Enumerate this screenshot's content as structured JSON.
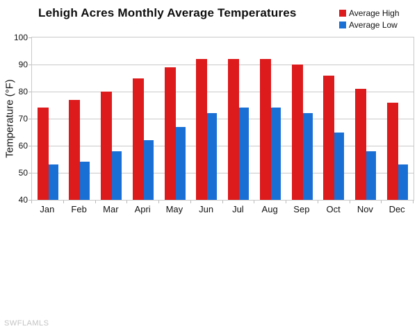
{
  "watermark": "SWFLAMLS",
  "chart_data": {
    "type": "bar",
    "title": "Lehigh Acres Monthly Average Temperatures",
    "xlabel": "",
    "ylabel": "Temperature (°F)",
    "ylim": [
      40,
      100
    ],
    "yticks": [
      40,
      50,
      60,
      70,
      80,
      90,
      100
    ],
    "grid": true,
    "legend_position": "top-right",
    "categories": [
      "Jan",
      "Feb",
      "Mar",
      "Apri",
      "May",
      "Jun",
      "Jul",
      "Aug",
      "Sep",
      "Oct",
      "Nov",
      "Dec"
    ],
    "series": [
      {
        "name": "Average High",
        "color": "#dd1a1c",
        "values": [
          74,
          77,
          80,
          85,
          89,
          92,
          92,
          92,
          90,
          86,
          81,
          76
        ]
      },
      {
        "name": "Average Low",
        "color": "#1a6fd4",
        "values": [
          53,
          54,
          58,
          62,
          67,
          72,
          74,
          74,
          72,
          65,
          58,
          53
        ]
      }
    ],
    "colors": {
      "grid": "#c9c9c9",
      "axis_text": "#111111",
      "title_text": "#0d0d0d",
      "watermark_text": "#c3c3c3"
    }
  }
}
